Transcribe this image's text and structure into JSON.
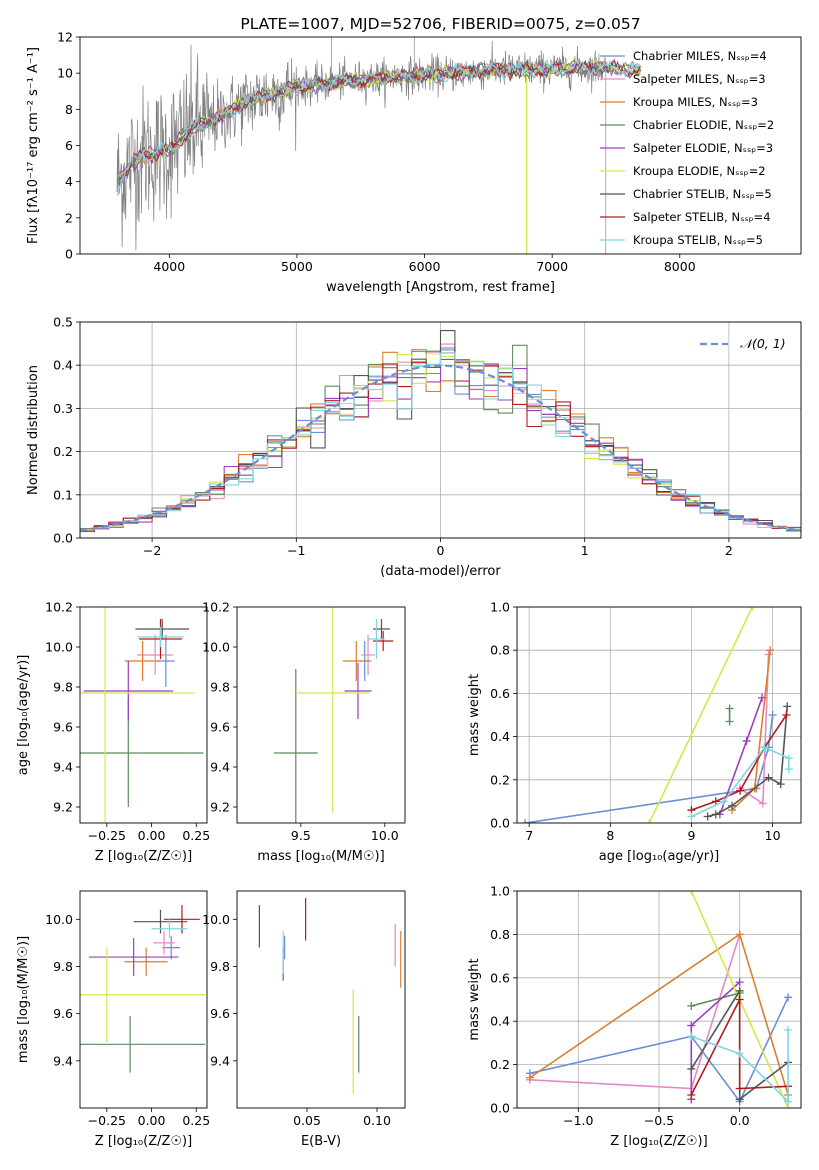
{
  "colors": {
    "chabrier_miles": "#6a8fd8",
    "salpeter_miles": "#e38ac6",
    "kroupa_miles": "#de7d2c",
    "chabrier_elodie": "#5e8a5e",
    "salpeter_elodie": "#9b3fbf",
    "kroupa_elodie": "#d4e84a",
    "chabrier_stelib": "#555555",
    "salpeter_stelib": "#b01c1c",
    "kroupa_stelib": "#7fd6e0",
    "grey_data": "#808080"
  },
  "chart_data": [
    {
      "id": "spectrum",
      "type": "line",
      "title": "PLATE=1007, MJD=52706, FIBERID=0075, z=0.057",
      "xlabel": "wavelength [Angstrom, rest frame]",
      "ylabel": "Flux [fλ10⁻¹⁷ erg cm⁻² s⁻¹ A⁻¹]",
      "xlim": [
        3300,
        8950
      ],
      "ylim": [
        0,
        12
      ],
      "xticks": [
        4000,
        5000,
        6000,
        7000,
        8000
      ],
      "yticks": [
        0,
        2,
        4,
        6,
        8,
        10,
        12
      ],
      "grid": false,
      "legend_position": "top-right",
      "legend": [
        {
          "label": "Chabrier MILES, Nₛₛₚ=4",
          "color_key": "chabrier_miles"
        },
        {
          "label": "Salpeter MILES, Nₛₛₚ=3",
          "color_key": "salpeter_miles"
        },
        {
          "label": "Kroupa MILES, Nₛₛₚ=3",
          "color_key": "kroupa_miles"
        },
        {
          "label": "Chabrier ELODIE, Nₛₛₚ=2",
          "color_key": "chabrier_elodie"
        },
        {
          "label": "Salpeter ELODIE, Nₛₛₚ=3",
          "color_key": "salpeter_elodie"
        },
        {
          "label": "Kroupa ELODIE, Nₛₛₚ=2",
          "color_key": "kroupa_elodie"
        },
        {
          "label": "Chabrier STELIB, Nₛₛₚ=5",
          "color_key": "chabrier_stelib"
        },
        {
          "label": "Salpeter STELIB, Nₛₛₚ=4",
          "color_key": "salpeter_stelib"
        },
        {
          "label": "Kroupa STELIB, Nₛₛₚ=5",
          "color_key": "kroupa_stelib"
        }
      ],
      "continuum": [
        [
          3600,
          4.0
        ],
        [
          3700,
          5.0
        ],
        [
          3800,
          5.5
        ],
        [
          3900,
          5.6
        ],
        [
          4000,
          5.8
        ],
        [
          4100,
          6.4
        ],
        [
          4200,
          7.0
        ],
        [
          4300,
          7.2
        ],
        [
          4400,
          7.6
        ],
        [
          4500,
          8.0
        ],
        [
          4600,
          8.4
        ],
        [
          4800,
          8.9
        ],
        [
          5000,
          9.2
        ],
        [
          5200,
          9.4
        ],
        [
          5400,
          9.6
        ],
        [
          5600,
          9.7
        ],
        [
          5800,
          9.8
        ],
        [
          6000,
          9.9
        ],
        [
          6200,
          10.0
        ],
        [
          6400,
          10.1
        ],
        [
          6600,
          10.2
        ],
        [
          6800,
          10.2
        ],
        [
          7000,
          10.2
        ],
        [
          7200,
          10.3
        ],
        [
          7400,
          10.3
        ],
        [
          7600,
          10.2
        ],
        [
          7700,
          10.1
        ]
      ],
      "grey_range": [
        3590,
        7420
      ],
      "model_range": [
        3600,
        7700
      ]
    },
    {
      "id": "residuals",
      "type": "histogram",
      "xlabel": "(data-model)/error",
      "ylabel": "Normed distribution",
      "xlim": [
        -2.5,
        2.5
      ],
      "ylim": [
        0,
        0.5
      ],
      "xticks": [
        -2,
        -1,
        0,
        1,
        2
      ],
      "yticks": [
        0.0,
        0.1,
        0.2,
        0.3,
        0.4,
        0.5
      ],
      "grid": true,
      "legend_position": "top-right",
      "legend": [
        {
          "label": "𝒩(0, 1)",
          "color_key": "chabrier_miles"
        }
      ],
      "bin_width": 0.1
    },
    {
      "id": "z_age",
      "type": "errorbar",
      "xlabel": "Z [log₁₀(Z/Z☉)]",
      "ylabel": "age  [log₁₀(age/yr)]",
      "xlim": [
        -0.4,
        0.31
      ],
      "ylim": [
        9.12,
        10.2
      ],
      "xticks": [
        -0.25,
        0.0,
        0.25
      ],
      "yticks": [
        9.2,
        9.4,
        9.6,
        9.8,
        10.0,
        10.2
      ],
      "points": [
        {
          "key": "chabrier_miles",
          "x": 0.08,
          "y": 9.93,
          "xerr": 0.05,
          "yerr": 0.13
        },
        {
          "key": "salpeter_miles",
          "x": 0.02,
          "y": 9.96,
          "xerr": 0.1,
          "yerr": 0.1
        },
        {
          "key": "kroupa_miles",
          "x": -0.05,
          "y": 9.93,
          "xerr": 0.1,
          "yerr": 0.1
        },
        {
          "key": "chabrier_elodie",
          "x": -0.13,
          "y": 9.47,
          "xerr": 0.42,
          "yerr": 0.27
        },
        {
          "key": "salpeter_elodie",
          "x": -0.13,
          "y": 9.78,
          "xerr": 0.25,
          "yerr": 0.15
        },
        {
          "key": "kroupa_elodie",
          "x": -0.26,
          "y": 9.77,
          "xerr": 0.5,
          "yerr": 0.9
        },
        {
          "key": "chabrier_stelib",
          "x": 0.06,
          "y": 10.09,
          "xerr": 0.15,
          "yerr": 0.05
        },
        {
          "key": "salpeter_stelib",
          "x": 0.05,
          "y": 10.04,
          "xerr": 0.12,
          "yerr": 0.1
        },
        {
          "key": "kroupa_stelib",
          "x": 0.05,
          "y": 10.05,
          "xerr": 0.13,
          "yerr": 0.05
        }
      ]
    },
    {
      "id": "mass_age",
      "type": "errorbar",
      "xlabel": "mass [log₁₀(M/M☉)]",
      "ylabel": "",
      "xlim": [
        9.12,
        10.12
      ],
      "ylim": [
        9.12,
        10.2
      ],
      "xticks": [
        9.5,
        10.0
      ],
      "yticks": [
        9.2,
        9.4,
        9.6,
        9.8,
        10.0,
        10.2
      ],
      "points": [
        {
          "key": "chabrier_miles",
          "x": 9.88,
          "y": 9.93,
          "xerr": 0.04,
          "yerr": 0.1
        },
        {
          "key": "salpeter_miles",
          "x": 9.9,
          "y": 9.96,
          "xerr": 0.04,
          "yerr": 0.1
        },
        {
          "key": "kroupa_miles",
          "x": 9.83,
          "y": 9.93,
          "xerr": 0.08,
          "yerr": 0.1
        },
        {
          "key": "chabrier_elodie",
          "x": 9.47,
          "y": 9.47,
          "xerr": 0.13,
          "yerr": 0.42
        },
        {
          "key": "salpeter_elodie",
          "x": 9.84,
          "y": 9.78,
          "xerr": 0.08,
          "yerr": 0.14
        },
        {
          "key": "kroupa_elodie",
          "x": 9.69,
          "y": 9.77,
          "xerr": 0.22,
          "yerr": 0.6
        },
        {
          "key": "chabrier_stelib",
          "x": 9.98,
          "y": 10.09,
          "xerr": 0.05,
          "yerr": 0.05
        },
        {
          "key": "salpeter_stelib",
          "x": 9.99,
          "y": 10.03,
          "xerr": 0.06,
          "yerr": 0.05
        },
        {
          "key": "kroupa_stelib",
          "x": 9.95,
          "y": 10.04,
          "xerr": 0.05,
          "yerr": 0.1
        }
      ]
    },
    {
      "id": "age_weight",
      "type": "line",
      "xlabel": "age  [log₁₀(age/yr)]",
      "ylabel": "mass weight",
      "xlim": [
        6.85,
        10.35
      ],
      "ylim": [
        0,
        1
      ],
      "xticks": [
        7,
        8,
        9,
        10
      ],
      "yticks": [
        0.0,
        0.2,
        0.4,
        0.6,
        0.8,
        1.0
      ],
      "grid": true,
      "series": [
        {
          "key": "chabrier_miles",
          "points": [
            [
              6.95,
              0.0
            ],
            [
              9.8,
              0.16
            ],
            [
              9.95,
              0.35
            ],
            [
              10.0,
              0.5
            ]
          ]
        },
        {
          "key": "salpeter_miles",
          "points": [
            [
              9.6,
              0.16
            ],
            [
              9.88,
              0.09
            ],
            [
              9.95,
              0.78
            ]
          ]
        },
        {
          "key": "kroupa_miles",
          "points": [
            [
              9.5,
              0.06
            ],
            [
              9.78,
              0.16
            ],
            [
              9.97,
              0.8
            ]
          ]
        },
        {
          "key": "chabrier_elodie",
          "points": [
            [
              9.47,
              0.47
            ],
            [
              9.47,
              0.53
            ]
          ]
        },
        {
          "key": "salpeter_elodie",
          "points": [
            [
              9.35,
              0.04
            ],
            [
              9.68,
              0.38
            ],
            [
              9.87,
              0.58
            ]
          ]
        },
        {
          "key": "kroupa_elodie",
          "points": [
            [
              8.48,
              0.0
            ],
            [
              9.75,
              1.0
            ]
          ]
        },
        {
          "key": "chabrier_stelib",
          "points": [
            [
              9.2,
              0.03
            ],
            [
              9.3,
              0.04
            ],
            [
              9.5,
              0.08
            ],
            [
              9.95,
              0.21
            ],
            [
              10.1,
              0.18
            ],
            [
              10.18,
              0.54
            ]
          ]
        },
        {
          "key": "salpeter_stelib",
          "points": [
            [
              9.0,
              0.06
            ],
            [
              9.3,
              0.1
            ],
            [
              9.6,
              0.15
            ],
            [
              9.9,
              0.35
            ],
            [
              10.17,
              0.5
            ]
          ]
        },
        {
          "key": "kroupa_stelib",
          "points": [
            [
              9.0,
              0.03
            ],
            [
              9.4,
              0.1
            ],
            [
              9.9,
              0.35
            ],
            [
              10.2,
              0.3
            ],
            [
              10.2,
              0.25
            ]
          ]
        }
      ]
    },
    {
      "id": "z_mass",
      "type": "errorbar",
      "xlabel": "Z [log₁₀(Z/Z☉)]",
      "ylabel": "mass [log₁₀(M/M☉)]",
      "xlim": [
        -0.4,
        0.31
      ],
      "ylim": [
        9.2,
        10.12
      ],
      "xticks": [
        -0.25,
        0.0,
        0.25
      ],
      "yticks": [
        9.4,
        9.6,
        9.8,
        10.0
      ],
      "points": [
        {
          "key": "chabrier_miles",
          "x": 0.11,
          "y": 9.88,
          "xerr": 0.05,
          "yerr": 0.05
        },
        {
          "key": "salpeter_miles",
          "x": 0.07,
          "y": 9.9,
          "xerr": 0.06,
          "yerr": 0.05
        },
        {
          "key": "kroupa_miles",
          "x": -0.03,
          "y": 9.82,
          "xerr": 0.12,
          "yerr": 0.06
        },
        {
          "key": "chabrier_elodie",
          "x": -0.12,
          "y": 9.47,
          "xerr": 0.42,
          "yerr": 0.12
        },
        {
          "key": "salpeter_elodie",
          "x": -0.1,
          "y": 9.84,
          "xerr": 0.25,
          "yerr": 0.08
        },
        {
          "key": "kroupa_elodie",
          "x": -0.25,
          "y": 9.68,
          "xerr": 0.55,
          "yerr": 0.2
        },
        {
          "key": "chabrier_stelib",
          "x": 0.05,
          "y": 9.99,
          "xerr": 0.15,
          "yerr": 0.05
        },
        {
          "key": "salpeter_stelib",
          "x": 0.17,
          "y": 10.0,
          "xerr": 0.1,
          "yerr": 0.06
        },
        {
          "key": "kroupa_stelib",
          "x": 0.1,
          "y": 9.96,
          "xerr": 0.1,
          "yerr": 0.04
        }
      ]
    },
    {
      "id": "ebv_mass",
      "type": "errorbar",
      "xlabel": "E(B-V)",
      "ylabel": "",
      "xlim": [
        0.0,
        0.12
      ],
      "ylim": [
        9.2,
        10.12
      ],
      "xticks": [
        0.05,
        0.1
      ],
      "yticks": [
        9.4,
        9.6,
        9.8,
        10.0
      ],
      "points": [
        {
          "key": "chabrier_miles",
          "x": 0.034,
          "y": 9.88,
          "xerr": 0,
          "yerr": 0.05
        },
        {
          "key": "salpeter_miles",
          "x": 0.113,
          "y": 9.89,
          "xerr": 0,
          "yerr": 0.09
        },
        {
          "key": "kroupa_miles",
          "x": 0.117,
          "y": 9.83,
          "xerr": 0,
          "yerr": 0.12
        },
        {
          "key": "chabrier_elodie",
          "x": 0.087,
          "y": 9.47,
          "xerr": 0,
          "yerr": 0.12
        },
        {
          "key": "salpeter_elodie",
          "x": 0.033,
          "y": 9.81,
          "xerr": 0,
          "yerr": 0.07
        },
        {
          "key": "kroupa_elodie",
          "x": 0.083,
          "y": 9.48,
          "xerr": 0,
          "yerr": 0.22
        },
        {
          "key": "chabrier_stelib",
          "x": 0.016,
          "y": 9.97,
          "xerr": 0,
          "yerr": 0.09
        },
        {
          "key": "salpeter_stelib",
          "x": 0.049,
          "y": 10.0,
          "xerr": 0,
          "yerr": 0.09
        },
        {
          "key": "kroupa_stelib",
          "x": 0.033,
          "y": 9.86,
          "xerr": 0,
          "yerr": 0.09
        }
      ]
    },
    {
      "id": "z_weight",
      "type": "line",
      "xlabel": "Z [log₁₀(Z/Z☉)]",
      "ylabel": "mass weight",
      "xlim": [
        -1.38,
        0.38
      ],
      "ylim": [
        0,
        1
      ],
      "xticks": [
        -1.0,
        -0.5,
        0.0
      ],
      "yticks": [
        0.0,
        0.2,
        0.4,
        0.6,
        0.8,
        1.0
      ],
      "grid": true,
      "series": [
        {
          "key": "chabrier_miles",
          "points": [
            [
              -1.3,
              0.16
            ],
            [
              -0.3,
              0.33
            ],
            [
              0.0,
              0.03
            ],
            [
              0.3,
              0.51
            ]
          ]
        },
        {
          "key": "salpeter_miles",
          "points": [
            [
              -1.3,
              0.13
            ],
            [
              -0.3,
              0.09
            ],
            [
              0.0,
              0.8
            ]
          ]
        },
        {
          "key": "kroupa_miles",
          "points": [
            [
              -1.3,
              0.14
            ],
            [
              0.0,
              0.8
            ],
            [
              0.3,
              0.06
            ]
          ]
        },
        {
          "key": "chabrier_elodie",
          "points": [
            [
              -0.3,
              0.47
            ],
            [
              0.0,
              0.53
            ]
          ]
        },
        {
          "key": "salpeter_elodie",
          "points": [
            [
              -0.3,
              0.04
            ],
            [
              -0.3,
              0.38
            ],
            [
              0.0,
              0.58
            ]
          ]
        },
        {
          "key": "kroupa_elodie",
          "points": [
            [
              -0.3,
              1.0
            ],
            [
              0.3,
              0.0
            ]
          ]
        },
        {
          "key": "chabrier_stelib",
          "points": [
            [
              -0.3,
              0.18
            ],
            [
              0.0,
              0.54
            ],
            [
              0.0,
              0.04
            ],
            [
              0.3,
              0.21
            ]
          ]
        },
        {
          "key": "salpeter_stelib",
          "points": [
            [
              -0.3,
              0.06
            ],
            [
              0.0,
              0.5
            ],
            [
              0.0,
              0.09
            ],
            [
              0.3,
              0.1
            ]
          ]
        },
        {
          "key": "kroupa_stelib",
          "points": [
            [
              -0.3,
              0.33
            ],
            [
              0.0,
              0.25
            ],
            [
              0.3,
              0.03
            ],
            [
              0.3,
              0.36
            ]
          ]
        }
      ]
    }
  ]
}
